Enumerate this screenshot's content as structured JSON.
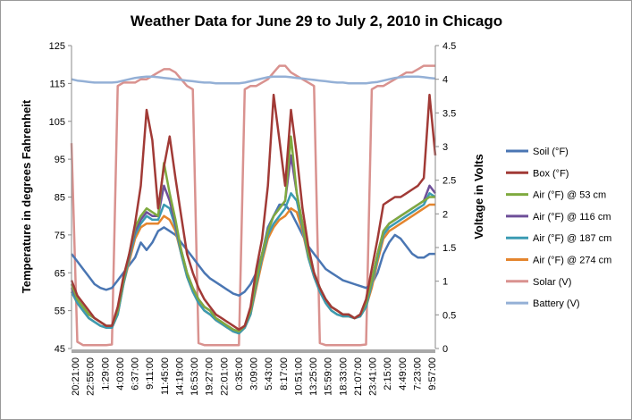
{
  "chart_data": {
    "type": "line",
    "title": "Weather Data for June 29 to July 2, 2010 in Chicago",
    "ylabel": "Temperature in degrees Fahrenheit",
    "y2label": "Voltage in Volts",
    "ylim": [
      45,
      125
    ],
    "y2lim": [
      0,
      4.5
    ],
    "yticks": [
      "45",
      "55",
      "65",
      "75",
      "85",
      "95",
      "105",
      "115",
      "125"
    ],
    "y2ticks": [
      "0",
      "0.5",
      "1",
      "1.5",
      "2",
      "2.5",
      "3",
      "3.5",
      "4",
      "4.5"
    ],
    "x_tick_labels": [
      "20:21:00",
      "22:55:00",
      "1:29:00",
      "4:03:00",
      "6:37:00",
      "9:11:00",
      "11:45:00",
      "14:19:00",
      "16:53:00",
      "19:27:00",
      "22:01:00",
      "0:35:00",
      "3:09:00",
      "5:43:00",
      "8:17:00",
      "10:51:00",
      "13:25:00",
      "15:59:00",
      "18:33:00",
      "21:07:00",
      "23:41:00",
      "2:15:00",
      "4:49:00",
      "7:23:00",
      "9:57:00"
    ],
    "x_tick_interval_minutes": 154,
    "x_count": 64,
    "legend_position": "right",
    "grid": false,
    "series": [
      {
        "name": "Soil (°F)",
        "axis": "left",
        "color": "#4a76b3",
        "values": [
          70,
          68,
          66,
          64,
          62,
          61,
          60.5,
          61,
          63,
          65,
          67,
          69,
          73,
          71,
          73,
          76,
          77,
          76,
          75,
          73,
          71,
          69,
          67,
          65,
          63.5,
          62.5,
          61.5,
          60.5,
          59.5,
          59,
          60,
          62,
          65,
          70,
          77,
          80,
          83,
          83,
          81,
          78,
          75,
          72,
          70,
          68,
          66,
          65,
          64,
          63,
          62.5,
          62,
          61.5,
          61,
          62,
          65,
          70,
          73,
          75,
          74,
          72,
          70,
          69,
          69,
          70,
          70
        ]
      },
      {
        "name": "Box (°F)",
        "axis": "left",
        "color": "#a13a36",
        "values": [
          63,
          59,
          57,
          55,
          53,
          52,
          51,
          51,
          56,
          64,
          70,
          78,
          88,
          108,
          100,
          82,
          93,
          101,
          90,
          80,
          70,
          65,
          61,
          58,
          56,
          54,
          53,
          52,
          51,
          50,
          51,
          56,
          66,
          74,
          88,
          112,
          100,
          88,
          108,
          96,
          82,
          72,
          65,
          61,
          58,
          56,
          55,
          54,
          54,
          53,
          54,
          58,
          66,
          74,
          83,
          84,
          85,
          85,
          86,
          87,
          88,
          90,
          112,
          96
        ]
      },
      {
        "name": "Air (°F) @ 53 cm",
        "axis": "left",
        "color": "#7faa3f",
        "values": [
          62,
          58,
          56,
          54,
          53,
          52,
          51,
          51,
          55,
          63,
          70,
          77,
          80,
          82,
          81,
          80,
          94,
          86,
          79,
          71,
          65,
          61,
          58,
          56,
          55,
          53,
          52,
          51,
          50,
          49.5,
          51,
          55,
          63,
          70,
          76,
          80,
          82,
          84,
          101,
          86,
          78,
          70,
          65,
          61,
          58,
          56,
          55,
          54,
          54,
          53,
          54,
          57,
          63,
          70,
          76,
          78,
          79,
          80,
          81,
          82,
          83,
          84,
          85,
          85
        ]
      },
      {
        "name": "Air (°F) @ 116 cm",
        "axis": "left",
        "color": "#6e4f99",
        "values": [
          61,
          58,
          56,
          54,
          53,
          52,
          51,
          51,
          55,
          63,
          70,
          76,
          79,
          81,
          80,
          80,
          88,
          84,
          78,
          71,
          65,
          61,
          58,
          56,
          55,
          53,
          52,
          51,
          50,
          49.5,
          51,
          55,
          63,
          70,
          76,
          80,
          82,
          84,
          96,
          86,
          78,
          70,
          65,
          61,
          58,
          56,
          55,
          54,
          54,
          53,
          54,
          57,
          63,
          70,
          76,
          78,
          79,
          80,
          81,
          82,
          83,
          84,
          88,
          86
        ]
      },
      {
        "name": "Air (°F) @ 187 cm",
        "axis": "left",
        "color": "#3b9bb3",
        "values": [
          60,
          57,
          55,
          53,
          52,
          51,
          50.5,
          50.5,
          54,
          62,
          69,
          75,
          78,
          80,
          79,
          79,
          83,
          82,
          77,
          70,
          64,
          60,
          57,
          55,
          54,
          52.5,
          51.5,
          50.5,
          49.5,
          49,
          50.5,
          54,
          62,
          69,
          75,
          78,
          80,
          82,
          86,
          84,
          77,
          69,
          64,
          60,
          57,
          55,
          54,
          53.5,
          53.5,
          53,
          53.5,
          56,
          62,
          69,
          75,
          77,
          78,
          79,
          80,
          81,
          82,
          83,
          86,
          85
        ]
      },
      {
        "name": "Air (°F) @ 274 cm",
        "axis": "left",
        "color": "#e4852e",
        "values": [
          60,
          57,
          55,
          53,
          52,
          51,
          50.5,
          50.5,
          54,
          62,
          68,
          74,
          77,
          78,
          78,
          78,
          80,
          79,
          76,
          70,
          64,
          60,
          57,
          55,
          54,
          52.5,
          51.5,
          50.5,
          49.5,
          49,
          50.5,
          54,
          61,
          68,
          74,
          77,
          79,
          80,
          82,
          81,
          76,
          69,
          64,
          60,
          57,
          55,
          54,
          53.5,
          53.5,
          53,
          53.5,
          56,
          61,
          68,
          74,
          76,
          77,
          78,
          79,
          80,
          81,
          82,
          83,
          83
        ]
      },
      {
        "name": "Solar (V)",
        "axis": "right",
        "color": "#d9928f",
        "values": [
          3.05,
          0.1,
          0.05,
          0.05,
          0.05,
          0.05,
          0.05,
          0.06,
          3.9,
          3.95,
          3.95,
          3.95,
          4.0,
          4.0,
          4.05,
          4.1,
          4.15,
          4.15,
          4.1,
          4.0,
          3.9,
          3.85,
          0.08,
          0.05,
          0.05,
          0.05,
          0.05,
          0.05,
          0.05,
          0.05,
          3.85,
          3.9,
          3.9,
          3.95,
          4.0,
          4.1,
          4.2,
          4.2,
          4.1,
          4.05,
          4.0,
          3.95,
          3.9,
          0.08,
          0.05,
          0.05,
          0.05,
          0.05,
          0.05,
          0.05,
          0.05,
          0.06,
          3.85,
          3.9,
          3.9,
          3.95,
          4.0,
          4.05,
          4.1,
          4.1,
          4.15,
          4.2,
          4.2,
          4.2
        ]
      },
      {
        "name": "Battery (V)",
        "axis": "right",
        "color": "#94b0d6",
        "values": [
          4.0,
          3.98,
          3.97,
          3.96,
          3.95,
          3.95,
          3.95,
          3.95,
          3.96,
          3.98,
          4.0,
          4.02,
          4.03,
          4.04,
          4.04,
          4.03,
          4.02,
          4.01,
          4.0,
          3.99,
          3.98,
          3.97,
          3.96,
          3.95,
          3.95,
          3.94,
          3.94,
          3.94,
          3.94,
          3.94,
          3.95,
          3.97,
          3.99,
          4.01,
          4.03,
          4.04,
          4.04,
          4.04,
          4.03,
          4.02,
          4.01,
          4.0,
          3.99,
          3.98,
          3.97,
          3.96,
          3.95,
          3.95,
          3.94,
          3.94,
          3.94,
          3.94,
          3.95,
          3.96,
          3.98,
          4.0,
          4.02,
          4.03,
          4.04,
          4.04,
          4.04,
          4.03,
          4.02,
          4.01
        ]
      }
    ]
  }
}
